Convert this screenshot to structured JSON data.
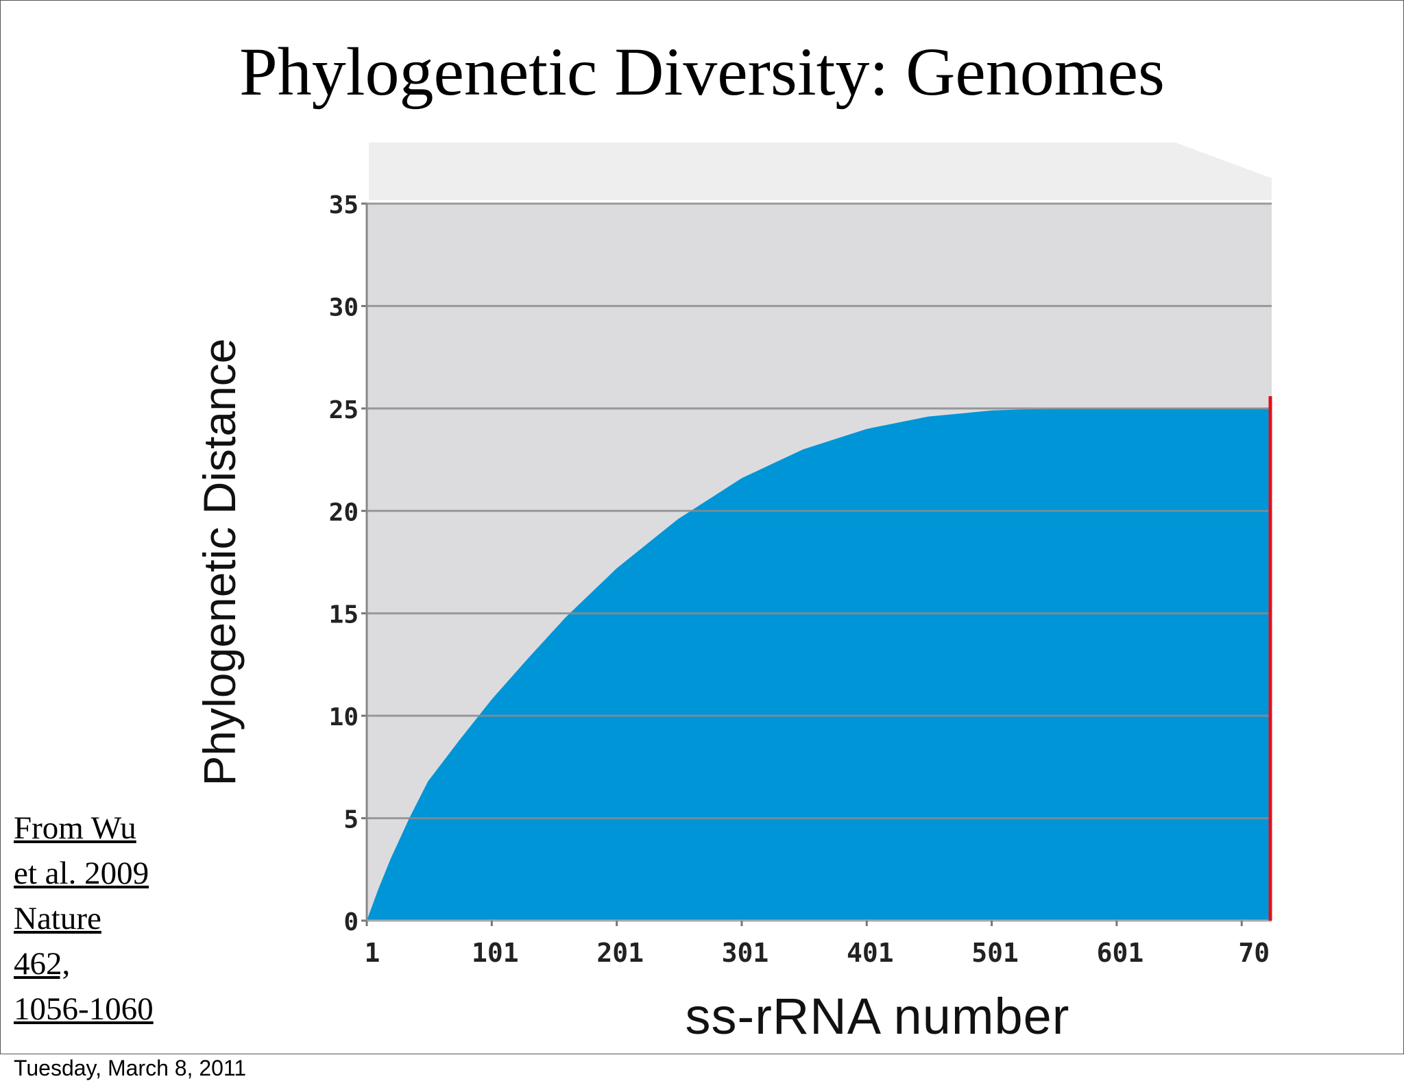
{
  "slide": {
    "title": "Phylogenetic Diversity: Genomes",
    "citation_lines": [
      "From Wu",
      "et al. 2009",
      "Nature",
      "462,",
      "1056-1060"
    ],
    "footer_date": "Tuesday, March 8, 2011"
  },
  "chart_data": {
    "type": "area",
    "title": "",
    "xlabel": "ss-rRNA number",
    "ylabel": "Phylogenetic Distance",
    "x_tick_labels": [
      "1",
      "101",
      "201",
      "301",
      "401",
      "501",
      "601",
      "70"
    ],
    "y_tick_labels": [
      "0",
      "5",
      "10",
      "15",
      "20",
      "25",
      "30",
      "35"
    ],
    "y_ticks": [
      0,
      5,
      10,
      15,
      20,
      25,
      30,
      35
    ],
    "xlim": [
      1,
      725
    ],
    "ylim": [
      0,
      35
    ],
    "grid": true,
    "series": [
      {
        "x": [
          1,
          10,
          20,
          35,
          50,
          75,
          101,
          130,
          160,
          201,
          250,
          301,
          350,
          401,
          450,
          501,
          550,
          601,
          650,
          725
        ],
        "y": [
          0,
          1.5,
          3.0,
          5.0,
          6.8,
          8.8,
          10.8,
          12.8,
          14.8,
          17.2,
          19.6,
          21.6,
          23.0,
          24.0,
          24.6,
          24.9,
          25.0,
          25.0,
          25.0,
          25.0
        ]
      }
    ],
    "colors": {
      "area": "#0095d6",
      "plot_background": "#dcdcdf",
      "top_band": "#eeeeee",
      "gridline": "#8c8c8c",
      "right_edge": "#e0101b"
    }
  }
}
